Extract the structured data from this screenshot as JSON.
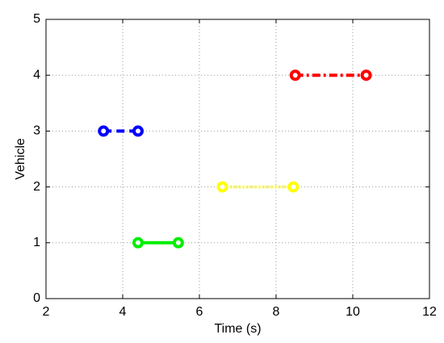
{
  "chart_data": {
    "type": "line",
    "xlabel": "Time (s)",
    "ylabel": "Vehicle",
    "xlim": [
      2,
      12
    ],
    "ylim": [
      0,
      5
    ],
    "xticks": [
      2,
      4,
      6,
      8,
      10,
      12
    ],
    "yticks": [
      0,
      1,
      2,
      3,
      4,
      5
    ],
    "grid": true,
    "series": [
      {
        "color": "#0000ff",
        "linestyle": "dashed",
        "x": [
          3.5,
          4.4
        ],
        "values": [
          3,
          3
        ]
      },
      {
        "color": "#00ee00",
        "linestyle": "solid",
        "x": [
          4.4,
          5.45
        ],
        "values": [
          1,
          1
        ]
      },
      {
        "color": "#ffff00",
        "linestyle": "dotted",
        "x": [
          6.6,
          8.45
        ],
        "values": [
          2,
          2
        ]
      },
      {
        "color": "#ff0000",
        "linestyle": "dashdot",
        "x": [
          8.5,
          10.35
        ],
        "values": [
          4,
          4
        ]
      }
    ]
  }
}
